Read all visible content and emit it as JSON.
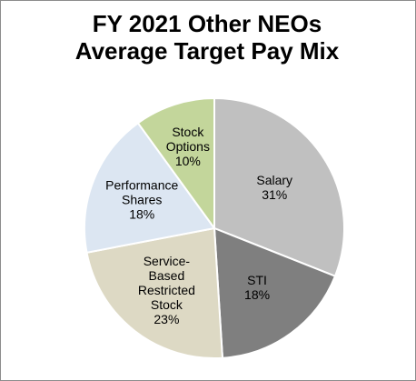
{
  "chart_data": {
    "type": "pie",
    "title_lines": [
      "FY 2021 Other NEOs",
      "Average Target Pay Mix"
    ],
    "slices": [
      {
        "name": "Salary",
        "label_lines": [
          "Salary"
        ],
        "value": 31,
        "value_label": "31%",
        "color": "#c0c0c0"
      },
      {
        "name": "STI",
        "label_lines": [
          "STI"
        ],
        "value": 18,
        "value_label": "18%",
        "color": "#7f7f7f"
      },
      {
        "name": "Service-Based Restricted Stock",
        "label_lines": [
          "Service-",
          "Based",
          "Restricted",
          "Stock"
        ],
        "value": 23,
        "value_label": "23%",
        "color": "#ddd9c4"
      },
      {
        "name": "Performance Shares",
        "label_lines": [
          "Performance",
          "Shares"
        ],
        "value": 18,
        "value_label": "18%",
        "color": "#dce6f2"
      },
      {
        "name": "Stock Options",
        "label_lines": [
          "Stock",
          "Options"
        ],
        "value": 10,
        "value_label": "10%",
        "color": "#c3d69b"
      }
    ],
    "start": "top",
    "direction": "clockwise",
    "slice_border_color": "#ffffff",
    "legend": "none"
  }
}
